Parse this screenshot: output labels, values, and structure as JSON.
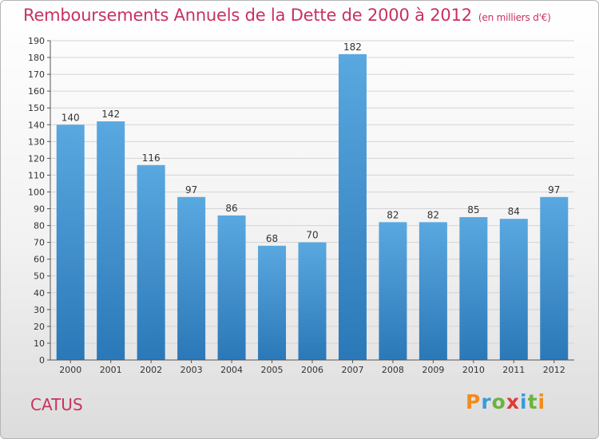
{
  "header": {
    "title": "Remboursements Annuels de la Dette de 2000 à 2012",
    "unit": "(en milliers d'€)"
  },
  "footer": {
    "place": "CATUS",
    "logo_text": "Proxiti",
    "logo_colors": [
      "#f28c1e",
      "#3a9ad9",
      "#6cb33f",
      "#e03a3a",
      "#3a9ad9",
      "#6cb33f",
      "#f28c1e"
    ]
  },
  "colors": {
    "bar_light": "#5aa8e0",
    "bar_dark": "#2b78b8",
    "title": "#c8325e"
  },
  "chart_data": {
    "type": "bar",
    "categories": [
      "2000",
      "2001",
      "2002",
      "2003",
      "2004",
      "2005",
      "2006",
      "2007",
      "2008",
      "2009",
      "2010",
      "2011",
      "2012"
    ],
    "values": [
      140,
      142,
      116,
      97,
      86,
      68,
      70,
      182,
      82,
      82,
      85,
      84,
      97
    ],
    "ylim": [
      0,
      190
    ],
    "yticks": [
      0,
      10,
      20,
      30,
      40,
      50,
      60,
      70,
      80,
      90,
      100,
      110,
      120,
      130,
      140,
      150,
      160,
      170,
      180,
      190
    ],
    "grid": true,
    "data_labels": true
  }
}
